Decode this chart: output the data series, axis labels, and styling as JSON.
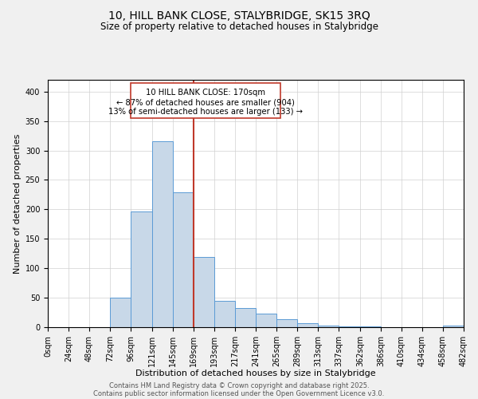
{
  "title": "10, HILL BANK CLOSE, STALYBRIDGE, SK15 3RQ",
  "subtitle": "Size of property relative to detached houses in Stalybridge",
  "xlabel": "Distribution of detached houses by size in Stalybridge",
  "ylabel": "Number of detached properties",
  "bin_edges": [
    0,
    24,
    48,
    72,
    96,
    121,
    145,
    169,
    193,
    217,
    241,
    265,
    289,
    313,
    337,
    362,
    386,
    410,
    434,
    458,
    482
  ],
  "bar_heights": [
    0,
    0,
    0,
    50,
    197,
    316,
    229,
    119,
    45,
    33,
    23,
    14,
    7,
    3,
    2,
    1,
    0,
    0,
    0,
    3
  ],
  "bar_color": "#c8d8e8",
  "bar_edge_color": "#5b9bd5",
  "vline_x": 169,
  "vline_color": "#c0392b",
  "annotation_line1": "10 HILL BANK CLOSE: 170sqm",
  "annotation_line2": "← 87% of detached houses are smaller (904)",
  "annotation_line3": "13% of semi-detached houses are larger (133) →",
  "title_fontsize": 10,
  "subtitle_fontsize": 8.5,
  "xlabel_fontsize": 8,
  "ylabel_fontsize": 8,
  "tick_fontsize": 7,
  "annotation_fontsize": 7.2,
  "footer_line1": "Contains HM Land Registry data © Crown copyright and database right 2025.",
  "footer_line2": "Contains public sector information licensed under the Open Government Licence v3.0.",
  "footer_fontsize": 6,
  "ylim": [
    0,
    420
  ],
  "grid_color": "#d0d0d0",
  "bg_color": "#f0f0f0",
  "plot_bg_color": "#ffffff",
  "tick_labels": [
    "0sqm",
    "24sqm",
    "48sqm",
    "72sqm",
    "96sqm",
    "121sqm",
    "145sqm",
    "169sqm",
    "193sqm",
    "217sqm",
    "241sqm",
    "265sqm",
    "289sqm",
    "313sqm",
    "337sqm",
    "362sqm",
    "386sqm",
    "410sqm",
    "434sqm",
    "458sqm",
    "482sqm"
  ]
}
